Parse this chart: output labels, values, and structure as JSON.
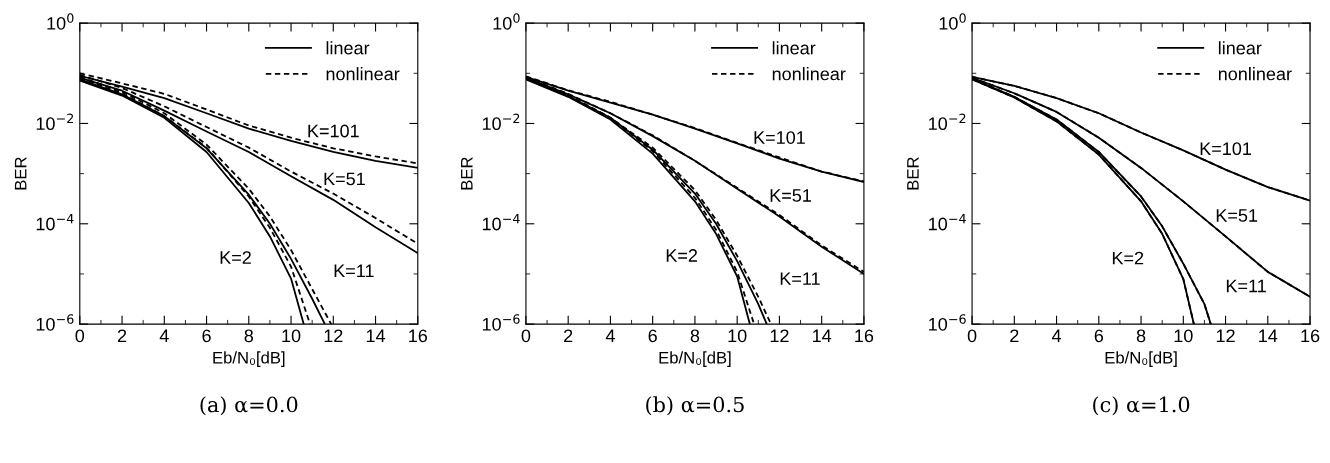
{
  "chart_data": [
    {
      "type": "line",
      "title": "(a) α=0.0",
      "xlabel": "Eb/N₀[dB]",
      "ylabel": "BER",
      "log": "y",
      "legend": "top right",
      "grid": false,
      "xlim": [
        0,
        16
      ],
      "xticks": [
        0,
        2,
        4,
        6,
        8,
        10,
        12,
        14,
        16
      ],
      "ylim": [
        1e-06,
        1
      ],
      "yticks": [
        {
          "value": 1,
          "label": "10$^{0}$"
        },
        {
          "value": 0.01,
          "label": "10$^{−2}$"
        },
        {
          "value": 0.0001,
          "label": "10$^{−4}$"
        },
        {
          "value": 1e-06,
          "label": "10$^{−6}$"
        }
      ],
      "annotations": [
        {
          "text": "K=101",
          "x": 12,
          "y": 0.0027
        },
        {
          "text": "K=51",
          "x": 12,
          "y": 0.0003
        },
        {
          "text": "K=2",
          "x": 10,
          "y": 8.1e-06
        },
        {
          "text": "K=11",
          "x": 11,
          "y": 5e-06
        }
      ],
      "series": [
        {
          "name": "linear",
          "color": "#000000",
          "line_style": "solid",
          "x": [
            0,
            2,
            4,
            6,
            8,
            10,
            12,
            14,
            16
          ],
          "values": [
            0.089,
            0.054,
            0.032,
            0.016,
            0.0079,
            0.0045,
            0.0027,
            0.0018,
            0.0013
          ]
        },
        {
          "name": "nonlinear",
          "color": "#000000",
          "line_style": "dashed",
          "x": [
            0,
            2,
            4,
            6,
            8,
            10,
            12,
            14,
            16
          ],
          "values": [
            0.1,
            0.063,
            0.039,
            0.019,
            0.0091,
            0.0052,
            0.0032,
            0.0022,
            0.0016
          ]
        },
        {
          "color": "#000000",
          "line_style": "solid",
          "x": [
            0,
            2,
            4,
            6,
            8,
            10,
            12,
            14,
            16
          ],
          "values": [
            0.081,
            0.045,
            0.018,
            0.0069,
            0.0027,
            0.00089,
            0.0003,
            8.5e-05,
            2.6e-05
          ]
        },
        {
          "color": "#000000",
          "line_style": "dashed",
          "x": [
            0,
            2,
            4,
            6,
            8,
            10,
            12,
            14,
            16
          ],
          "values": [
            0.093,
            0.051,
            0.022,
            0.0085,
            0.0033,
            0.0011,
            0.0004,
            0.00013,
            4e-05
          ]
        },
        {
          "color": "#000000",
          "line_style": "solid",
          "x": [
            0,
            2,
            4,
            6,
            8,
            9,
            10,
            10.6
          ],
          "values": [
            0.072,
            0.036,
            0.013,
            0.0027,
            0.00026,
            5.6e-05,
            8.1e-06,
            1e-06
          ]
        },
        {
          "color": "#000000",
          "line_style": "dashed",
          "x": [
            0,
            2,
            4,
            6,
            8,
            9,
            10,
            10.9
          ],
          "values": [
            0.079,
            0.04,
            0.014,
            0.0033,
            0.00035,
            8.3e-05,
            1.4e-05,
            1e-06
          ]
        },
        {
          "color": "#000000",
          "line_style": "solid",
          "x": [
            0,
            2,
            4,
            6,
            8,
            9,
            10,
            11,
            11.6
          ],
          "values": [
            0.076,
            0.038,
            0.014,
            0.0032,
            0.00038,
            0.0001,
            2e-05,
            3.2e-06,
            1e-06
          ]
        },
        {
          "color": "#000000",
          "line_style": "dashed",
          "x": [
            0,
            2,
            4,
            6,
            8,
            9,
            10,
            11,
            11.9
          ],
          "values": [
            0.085,
            0.043,
            0.016,
            0.0038,
            0.0005,
            0.00014,
            3e-05,
            5e-06,
            1e-06
          ]
        }
      ]
    },
    {
      "type": "line",
      "title": "(b) α=0.5",
      "xlabel": "Eb/N₀[dB]",
      "ylabel": "BER",
      "log": "y",
      "legend": "top right",
      "grid": false,
      "xlim": [
        0,
        16
      ],
      "xticks": [
        0,
        2,
        4,
        6,
        8,
        10,
        12,
        14,
        16
      ],
      "ylim": [
        1e-06,
        1
      ],
      "yticks": [
        {
          "value": 1,
          "label": "10$^{0}$"
        },
        {
          "value": 0.01,
          "label": "10$^{−2}$"
        },
        {
          "value": 0.0001,
          "label": "10$^{−4}$"
        },
        {
          "value": 1e-06,
          "label": "10$^{−6}$"
        }
      ],
      "annotations": [
        {
          "text": "K=101",
          "x": 12,
          "y": 0.002
        },
        {
          "text": "K=51",
          "x": 12,
          "y": 0.00014
        },
        {
          "text": "K=2",
          "x": 10,
          "y": 8.9e-06
        },
        {
          "text": "K=11",
          "x": 11,
          "y": 3.5e-06
        }
      ],
      "series": [
        {
          "name": "linear",
          "color": "#000000",
          "line_style": "solid",
          "x": [
            0,
            2,
            4,
            6,
            8,
            10,
            12,
            14,
            16
          ],
          "values": [
            0.085,
            0.045,
            0.026,
            0.015,
            0.0079,
            0.004,
            0.002,
            0.0011,
            0.00068
          ]
        },
        {
          "name": "nonlinear",
          "color": "#000000",
          "line_style": "dashed",
          "x": [
            0,
            2,
            4,
            6,
            8,
            10,
            12,
            14,
            16
          ],
          "values": [
            0.087,
            0.046,
            0.027,
            0.015,
            0.0081,
            0.0041,
            0.0021,
            0.0011,
            0.0007
          ]
        },
        {
          "color": "#000000",
          "line_style": "solid",
          "x": [
            0,
            2,
            4,
            6,
            8,
            10,
            12,
            14,
            16
          ],
          "values": [
            0.081,
            0.038,
            0.016,
            0.0056,
            0.0018,
            0.0005,
            0.00014,
            3.5e-05,
            1e-05
          ]
        },
        {
          "color": "#000000",
          "line_style": "dashed",
          "x": [
            0,
            2,
            4,
            6,
            8,
            10,
            12,
            14,
            16
          ],
          "values": [
            0.083,
            0.039,
            0.016,
            0.0058,
            0.0018,
            0.00052,
            0.00015,
            3.7e-05,
            1.1e-05
          ]
        },
        {
          "color": "#000000",
          "line_style": "solid",
          "x": [
            0,
            2,
            4,
            6,
            8,
            9,
            10,
            10.6
          ],
          "values": [
            0.076,
            0.034,
            0.012,
            0.0025,
            0.00028,
            6.3e-05,
            8.9e-06,
            1e-06
          ]
        },
        {
          "color": "#000000",
          "line_style": "dashed",
          "x": [
            0,
            2,
            4,
            6,
            8,
            9,
            10,
            10.8
          ],
          "values": [
            0.079,
            0.035,
            0.013,
            0.0028,
            0.00033,
            7.6e-05,
            1.1e-05,
            1e-06
          ]
        },
        {
          "color": "#000000",
          "line_style": "solid",
          "x": [
            0,
            2,
            4,
            6,
            8,
            9,
            10,
            11,
            11.4
          ],
          "values": [
            0.079,
            0.035,
            0.013,
            0.003,
            0.0004,
            0.0001,
            1.8e-05,
            2.5e-06,
            1e-06
          ]
        },
        {
          "color": "#000000",
          "line_style": "dashed",
          "x": [
            0,
            2,
            4,
            6,
            8,
            9,
            10,
            11,
            11.6
          ],
          "values": [
            0.083,
            0.037,
            0.013,
            0.0033,
            0.00047,
            0.00012,
            2.3e-05,
            3.5e-06,
            1e-06
          ]
        }
      ]
    },
    {
      "type": "line",
      "title": "(c) α=1.0",
      "xlabel": "Eb/N₀[dB]",
      "ylabel": "BER",
      "log": "y",
      "legend": "top right",
      "grid": false,
      "xlim": [
        0,
        16
      ],
      "xticks": [
        0,
        2,
        4,
        6,
        8,
        10,
        12,
        14,
        16
      ],
      "ylim": [
        1e-06,
        1
      ],
      "yticks": [
        {
          "value": 1,
          "label": "10$^{0}$"
        },
        {
          "value": 0.01,
          "label": "10$^{−2}$"
        },
        {
          "value": 0.0001,
          "label": "10$^{−4}$"
        },
        {
          "value": 1e-06,
          "label": "10$^{−6}$"
        }
      ],
      "annotations": [
        {
          "text": "K=101",
          "x": 12,
          "y": 0.0012
        },
        {
          "text": "K=51",
          "x": 12,
          "y": 5.6e-05
        },
        {
          "text": "K=2",
          "x": 10,
          "y": 7.9e-06
        },
        {
          "text": "K=11",
          "x": 11,
          "y": 2.5e-06
        }
      ],
      "series": [
        {
          "name": "nonlinear",
          "color": "#000000",
          "line_style": "dashed",
          "x": [
            0,
            2,
            4,
            6,
            8,
            10,
            12,
            14,
            16
          ],
          "values": [
            0.085,
            0.056,
            0.032,
            0.016,
            0.0066,
            0.0029,
            0.0012,
            0.00054,
            0.00029
          ]
        },
        {
          "color": "#000000",
          "line_style": "dashed",
          "x": [
            0,
            2,
            4,
            6,
            8,
            10,
            12,
            14,
            16
          ],
          "values": [
            0.081,
            0.04,
            0.017,
            0.0052,
            0.0013,
            0.00028,
            5.6e-05,
            1.1e-05,
            3.5e-06
          ]
        },
        {
          "color": "#000000",
          "line_style": "dashed",
          "x": [
            0,
            2,
            4,
            6,
            8,
            9,
            10,
            10.5
          ],
          "values": [
            0.076,
            0.033,
            0.011,
            0.0024,
            0.00028,
            6.3e-05,
            7.9e-06,
            1e-06
          ]
        },
        {
          "color": "#000000",
          "line_style": "dashed",
          "x": [
            0,
            2,
            4,
            6,
            8,
            9,
            10,
            11,
            11.3
          ],
          "values": [
            0.078,
            0.034,
            0.012,
            0.0027,
            0.00035,
            8.9e-05,
            1.6e-05,
            2.5e-06,
            1e-06
          ]
        },
        {
          "name": "linear",
          "color": "#000000",
          "line_style": "solid",
          "x": [
            0,
            2,
            4,
            6,
            8,
            10,
            12,
            14,
            16
          ],
          "values": [
            0.085,
            0.056,
            0.032,
            0.016,
            0.0066,
            0.0029,
            0.0012,
            0.00054,
            0.00029
          ]
        },
        {
          "color": "#000000",
          "line_style": "solid",
          "x": [
            0,
            2,
            4,
            6,
            8,
            10,
            12,
            14,
            16
          ],
          "values": [
            0.081,
            0.04,
            0.017,
            0.0052,
            0.0013,
            0.00028,
            5.6e-05,
            1.1e-05,
            3.5e-06
          ]
        },
        {
          "color": "#000000",
          "line_style": "solid",
          "x": [
            0,
            2,
            4,
            6,
            8,
            9,
            10,
            10.5
          ],
          "values": [
            0.076,
            0.033,
            0.011,
            0.0024,
            0.00028,
            6.3e-05,
            7.9e-06,
            1e-06
          ]
        },
        {
          "color": "#000000",
          "line_style": "solid",
          "x": [
            0,
            2,
            4,
            6,
            8,
            9,
            10,
            11,
            11.3
          ],
          "values": [
            0.078,
            0.034,
            0.012,
            0.0027,
            0.00035,
            8.9e-05,
            1.6e-05,
            2.5e-06,
            1e-06
          ]
        }
      ]
    }
  ]
}
